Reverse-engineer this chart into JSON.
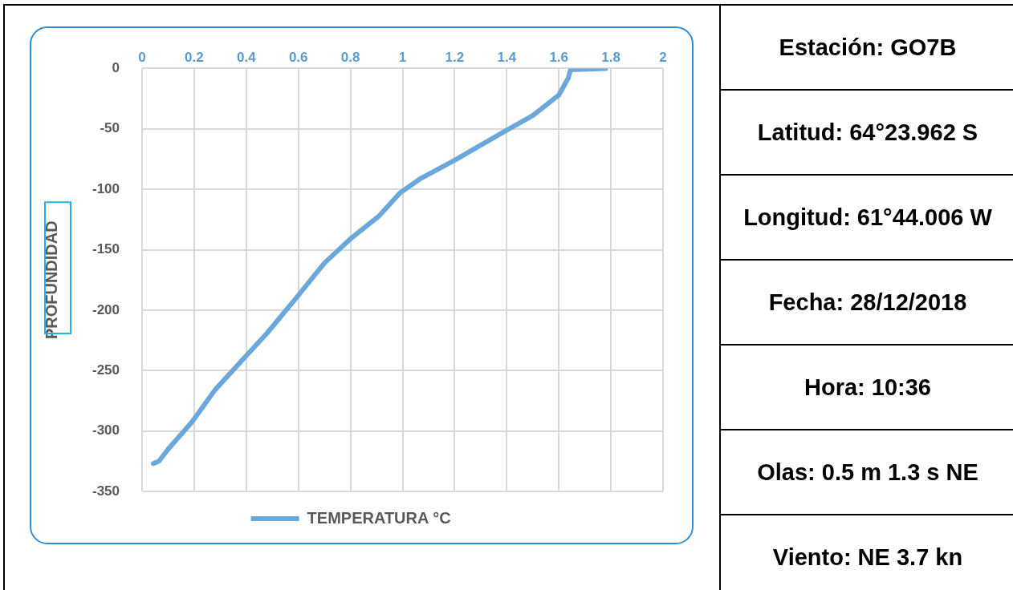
{
  "chart_data": [
    {
      "type": "line",
      "ylabel": "PROFUNDIDAD",
      "marker": "none",
      "line_style": "solid",
      "grid": true,
      "legend": "bottom",
      "xlim": [
        0,
        2
      ],
      "xticks": [
        0,
        0.2,
        0.4,
        0.6,
        0.8,
        1,
        1.2,
        1.4,
        1.6,
        1.8,
        2
      ],
      "ylim": [
        -350,
        0
      ],
      "yticks": [
        -350,
        -300,
        -250,
        -200,
        -150,
        -100,
        -50,
        0
      ],
      "series": [
        {
          "name": "TEMPERATURA °C",
          "color": "#6aa8dc",
          "x": [
            1.78,
            1.645,
            1.636,
            1.6,
            1.5,
            1.4,
            1.2,
            1.07,
            0.99,
            0.91,
            0.8,
            0.7,
            0.595,
            0.48,
            0.39,
            0.28,
            0.19,
            0.1,
            0.065,
            0.043
          ],
          "values": [
            0,
            -1,
            -8,
            -22,
            -39,
            -51,
            -76,
            -91,
            -103,
            -122,
            -141,
            -161,
            -189,
            -219,
            -240,
            -266,
            -293,
            -315,
            -325,
            -327
          ]
        }
      ]
    },
    {
      "type": "other",
      "annotations": [
        "Estación: GO7B",
        "Latitud: 64°23.962 S",
        "Longitud: 61°44.006 W",
        "Fecha: 28/12/2018",
        "Hora: 10:36",
        "Olas: 0.5 m  1.3 s  NE",
        "Viento: NE 3.7 kn"
      ]
    }
  ]
}
